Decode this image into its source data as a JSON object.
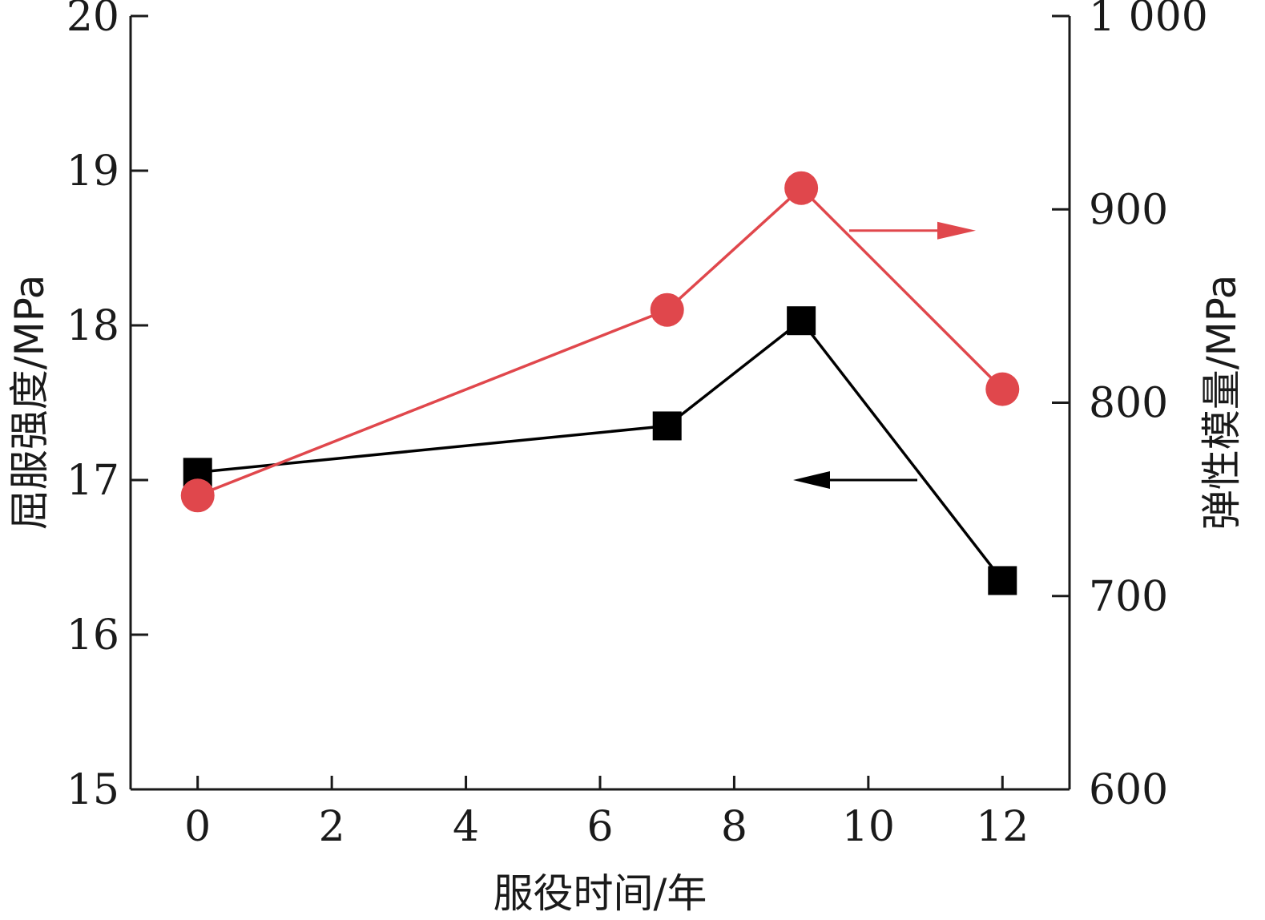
{
  "chart_data": {
    "type": "line",
    "xlabel": "服役时间/年",
    "ylabel_left": "屈服强度/MPa",
    "ylabel_right": "弹性模量/MPa",
    "x_ticks": [
      "0",
      "2",
      "4",
      "6",
      "8",
      "10",
      "12"
    ],
    "y_left_ticks": [
      "15",
      "16",
      "17",
      "18",
      "19",
      "20"
    ],
    "y_right_ticks": [
      "600",
      "700",
      "800",
      "900",
      "1 000"
    ],
    "xlim": [
      -1,
      13
    ],
    "ylim_left": [
      15,
      20
    ],
    "ylim_right": [
      600,
      1000
    ],
    "grid": false,
    "series": [
      {
        "axis": "left",
        "marker": "square",
        "color": "#000000",
        "x": [
          0,
          7,
          9,
          12
        ],
        "values": [
          17.05,
          17.35,
          18.03,
          16.35
        ]
      },
      {
        "axis": "right",
        "marker": "circle",
        "color": "#e0474c",
        "x": [
          0,
          7,
          9,
          12
        ],
        "values": [
          752,
          848,
          911,
          807
        ]
      }
    ],
    "annotations": [
      {
        "type": "arrow",
        "direction": "left",
        "color": "#000000",
        "points_to": "left-axis"
      },
      {
        "type": "arrow",
        "direction": "right",
        "color": "#e0474c",
        "points_to": "right-axis"
      }
    ]
  }
}
